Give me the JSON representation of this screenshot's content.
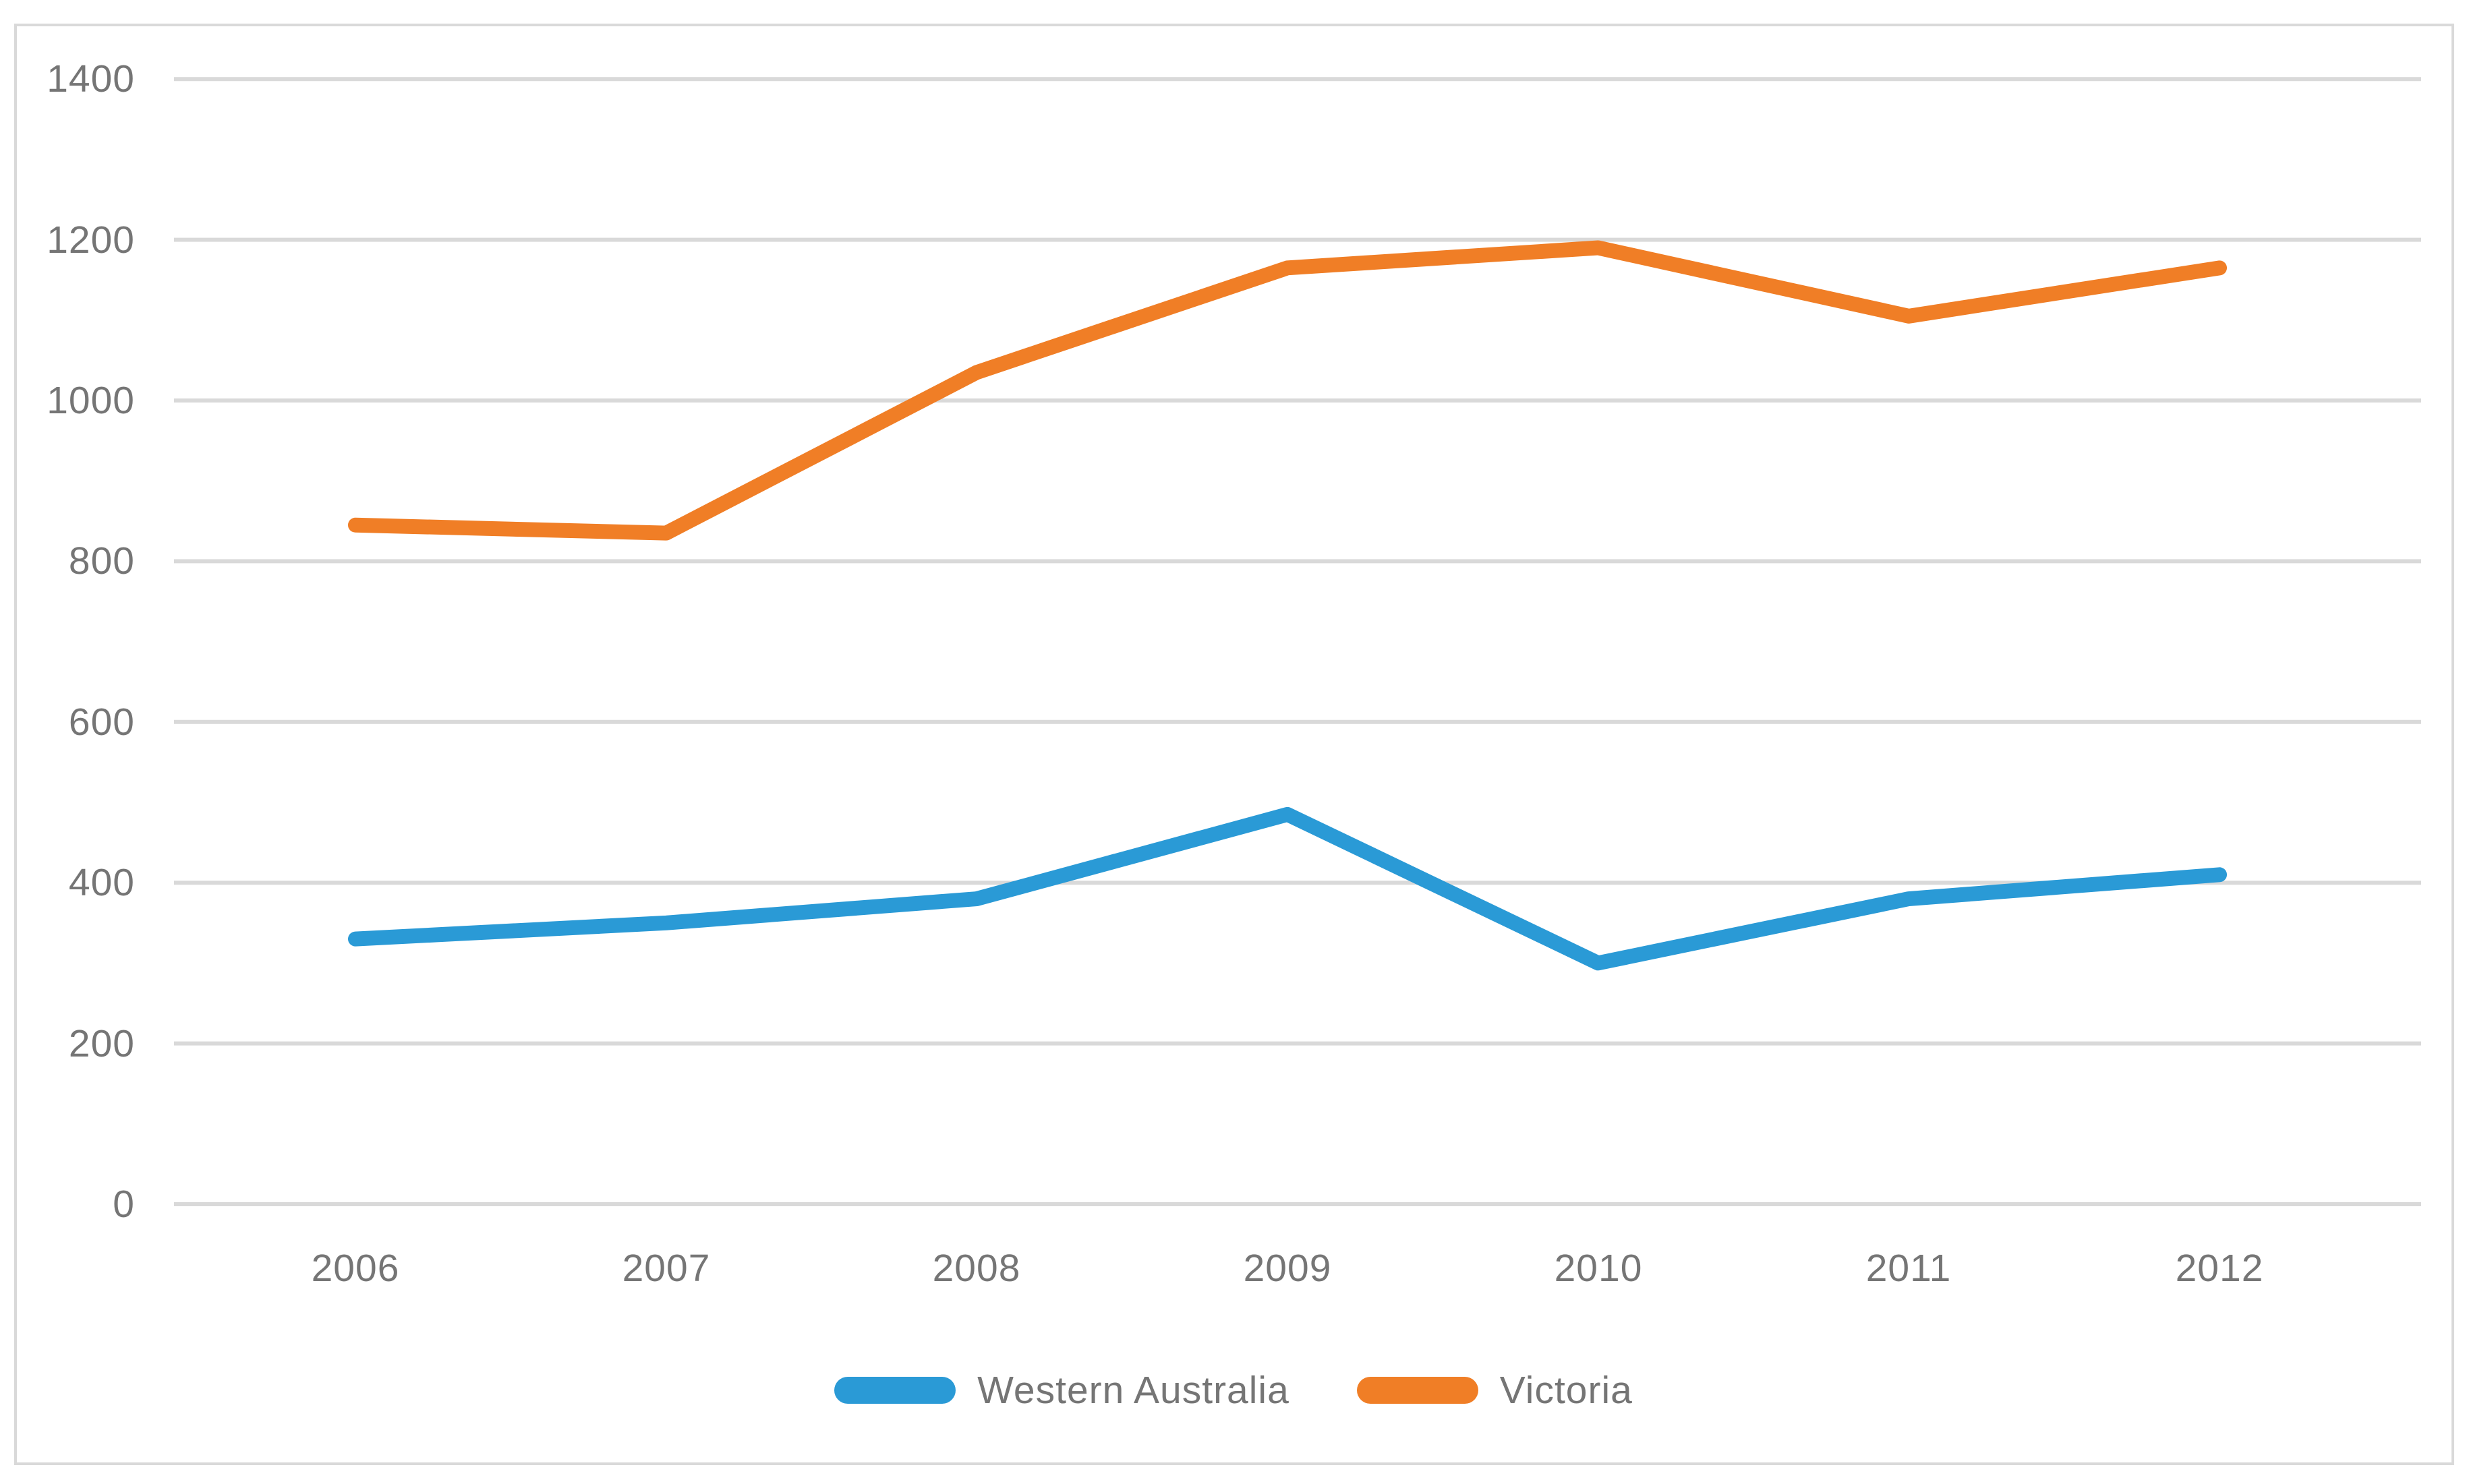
{
  "chart_data": {
    "type": "line",
    "title": "",
    "xlabel": "",
    "ylabel": "",
    "categories": [
      "2006",
      "2007",
      "2008",
      "2009",
      "2010",
      "2011",
      "2012"
    ],
    "series": [
      {
        "name": "Western Australia",
        "color": "#2a9ad6",
        "values": [
          330,
          350,
          380,
          485,
          300,
          380,
          410
        ]
      },
      {
        "name": "Victoria",
        "color": "#f07e26",
        "values": [
          845,
          835,
          1035,
          1165,
          1190,
          1105,
          1165
        ]
      }
    ],
    "ylim": [
      0,
      1400
    ],
    "yticks": [
      0,
      200,
      400,
      600,
      800,
      1000,
      1200,
      1400
    ],
    "grid": true,
    "gridline_color": "#d9d9d9",
    "axis_label_color": "#757575",
    "plot_border_color": "#d9d9d9",
    "background": "#ffffff",
    "legend_position": "bottom"
  }
}
